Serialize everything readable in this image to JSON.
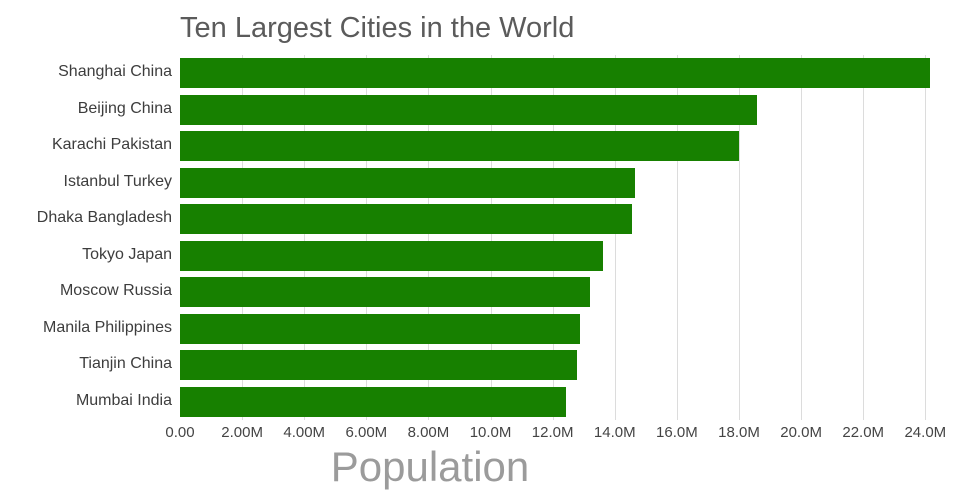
{
  "chart_data": {
    "type": "bar",
    "orientation": "horizontal",
    "title": "Ten Largest Cities in the World",
    "xlabel": "Population",
    "ylabel": "",
    "categories": [
      "Shanghai China",
      "Beijing China",
      "Karachi Pakistan",
      "Istanbul Turkey",
      "Dhaka Bangladesh",
      "Tokyo Japan",
      "Moscow Russia",
      "Manila Philippines",
      "Tianjin China",
      "Mumbai India"
    ],
    "values_millions": [
      24.15,
      18.59,
      18.0,
      14.66,
      14.54,
      13.62,
      13.19,
      12.88,
      12.78,
      12.44
    ],
    "xlim": [
      0,
      24.15
    ],
    "tick_values": [
      0,
      2,
      4,
      6,
      8,
      10,
      12,
      14,
      16,
      18,
      20,
      22,
      24
    ],
    "tick_labels": [
      "0.00",
      "2.00M",
      "4.00M",
      "6.00M",
      "8.00M",
      "10.0M",
      "12.0M",
      "14.0M",
      "16.0M",
      "18.0M",
      "20.0M",
      "22.0M",
      "24.0M"
    ],
    "grid": true,
    "legend": "none",
    "colors": {
      "bar": "#178000",
      "title": "#5b5b5b",
      "axis_title": "#9b9b9b",
      "tick_label": "#444444",
      "gridline": "#dcdcdc"
    }
  }
}
